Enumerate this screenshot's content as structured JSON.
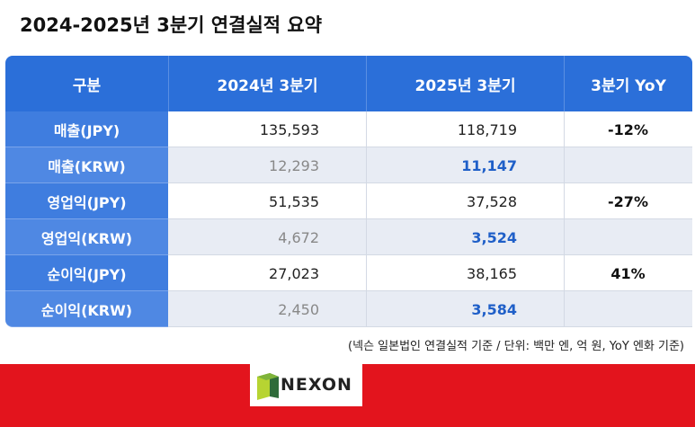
{
  "header": {
    "title": "2024-2025년 3분기 연결실적 요약"
  },
  "table": {
    "columns": [
      "구분",
      "2024년 3분기",
      "2025년 3분기",
      "3분기 YoY"
    ],
    "rows": [
      {
        "label": "매출(JPY)",
        "y2024": "135,593",
        "y2025": "118,719",
        "yoy": "-12%"
      },
      {
        "label": "매출(KRW)",
        "y2024": "12,293",
        "y2025": "11,147"
      },
      {
        "label": "영업익(JPY)",
        "y2024": "51,535",
        "y2025": "37,528",
        "yoy": "-27%"
      },
      {
        "label": "영업익(KRW)",
        "y2024": "4,672",
        "y2025": "3,524"
      },
      {
        "label": "순이익(JPY)",
        "y2024": "27,023",
        "y2025": "38,165",
        "yoy": "41%"
      },
      {
        "label": "순이익(KRW)",
        "y2024": "2,450",
        "y2025": "3,584"
      }
    ]
  },
  "footnote": "(넥슨 일본법인 연결실적 기준 / 단위: 백만 엔, 억 원, YoY 엔화 기준)",
  "logo": {
    "text": "NEXON"
  }
}
